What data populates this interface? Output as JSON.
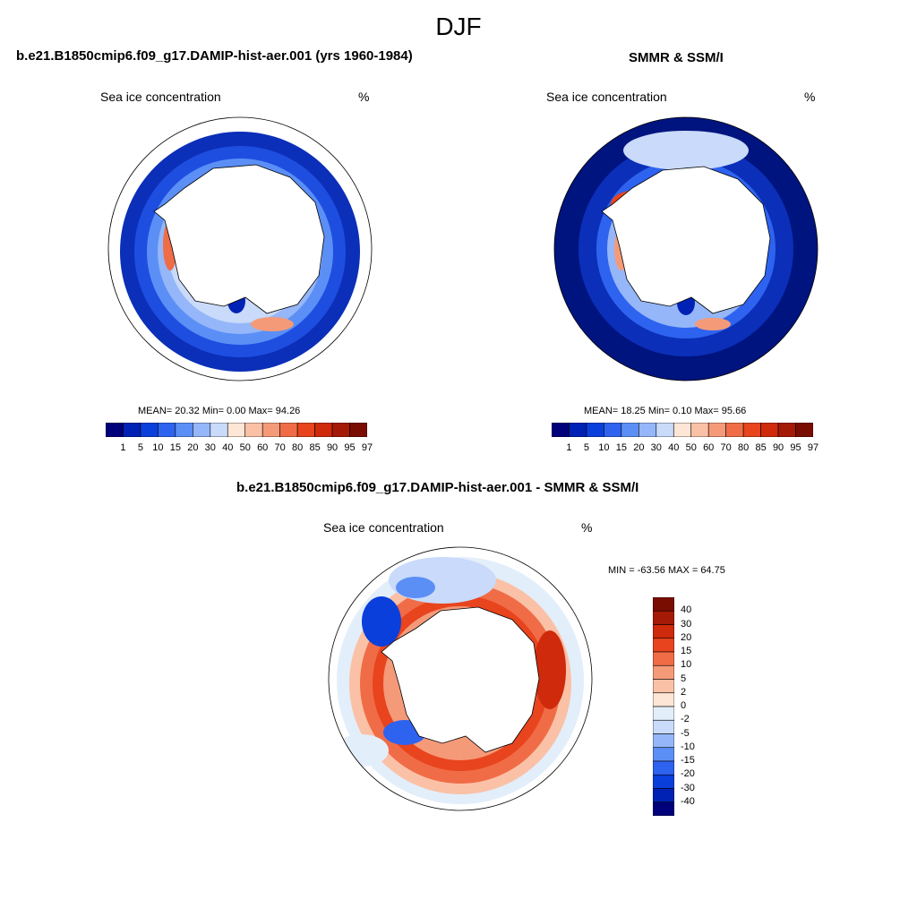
{
  "main_title": "DJF",
  "palette": {
    "full": [
      "#00007a",
      "#0022b4",
      "#0b3fdc",
      "#2e63f0",
      "#5b8ff6",
      "#95b6f8",
      "#c9dafa",
      "#fde6d5",
      "#fac1a6",
      "#f59a78",
      "#f06c47",
      "#e8441e",
      "#cf2a0c",
      "#a51a06",
      "#7a0d02"
    ],
    "diff": [
      "#00007a",
      "#0022b4",
      "#0b3fdc",
      "#2e63f0",
      "#5b8ff6",
      "#95b6f8",
      "#c9dafa",
      "#e3eefb",
      "#fde6d5",
      "#fac1a6",
      "#f59a78",
      "#f06c47",
      "#e8441e",
      "#cf2a0c",
      "#a51a06",
      "#7a0d02"
    ]
  },
  "panels": [
    {
      "title": "b.e21.B1850cmip6.f09_g17.DAMIP-hist-aer.001 (yrs 1960-1984)",
      "field": "Sea ice concentration",
      "units": "%",
      "stats": "MEAN=  20.32  Min=    0.00  Max=  94.26",
      "colorbar_labels": [
        "1",
        "5",
        "10",
        "15",
        "20",
        "30",
        "40",
        "50",
        "60",
        "70",
        "80",
        "85",
        "90",
        "95",
        "97"
      ]
    },
    {
      "title": "SMMR & SSM/I",
      "field": "Sea ice concentration",
      "units": "%",
      "stats": "MEAN=  18.25  Min=   0.10  Max=  95.66",
      "colorbar_labels": [
        "1",
        "5",
        "10",
        "15",
        "20",
        "30",
        "40",
        "50",
        "60",
        "70",
        "80",
        "85",
        "90",
        "95",
        "97"
      ]
    },
    {
      "title": "b.e21.B1850cmip6.f09_g17.DAMIP-hist-aer.001 - SMMR & SSM/I",
      "field": "Sea ice concentration",
      "units": "%",
      "stats": "MIN = -63.56 MAX =  64.75",
      "colorbar_labels": [
        "40",
        "30",
        "20",
        "15",
        "10",
        "5",
        "2",
        "0",
        "-2",
        "-5",
        "-10",
        "-15",
        "-20",
        "-30",
        "-40"
      ]
    }
  ]
}
